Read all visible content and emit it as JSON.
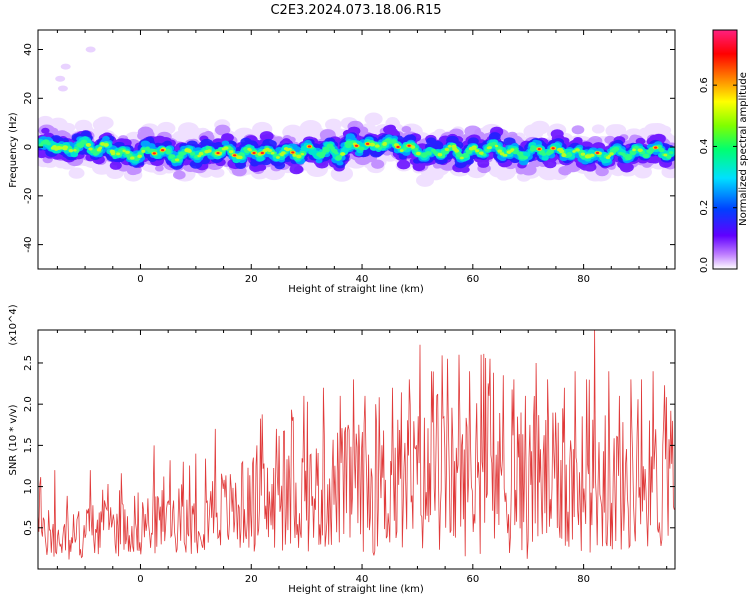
{
  "title": "C2E3.2024.073.18.06.R15",
  "chart_data": [
    {
      "type": "heatmap",
      "xlabel": "Height of straight line (km)",
      "ylabel": "Frequency (Hz)",
      "xlim": [
        -18.5,
        96.5
      ],
      "ylim": [
        -50,
        48
      ],
      "xticks": [
        0,
        20,
        40,
        60,
        80
      ],
      "yticks": [
        -40,
        -20,
        0,
        20,
        40
      ],
      "xtick_labels": [
        "0",
        "20",
        "40",
        "60",
        "80"
      ],
      "ytick_labels": [
        "-40",
        "-20",
        "0",
        "20",
        "40"
      ],
      "center_track": [
        [
          -18,
          0
        ],
        [
          -16,
          2
        ],
        [
          -14,
          -2
        ],
        [
          -12,
          0
        ],
        [
          -10,
          1
        ],
        [
          -8,
          -1
        ],
        [
          -6,
          0
        ],
        [
          -4,
          -2
        ],
        [
          -2,
          -4
        ],
        [
          0,
          -3
        ],
        [
          2,
          -1
        ],
        [
          4,
          -2
        ],
        [
          6,
          -4
        ],
        [
          8,
          -3
        ],
        [
          10,
          -2
        ],
        [
          12,
          -3
        ],
        [
          14,
          -1
        ],
        [
          16,
          -2
        ],
        [
          18,
          -3
        ],
        [
          20,
          -2
        ],
        [
          22,
          -2
        ],
        [
          24,
          -3
        ],
        [
          26,
          -2
        ],
        [
          28,
          -3
        ],
        [
          30,
          -1
        ],
        [
          32,
          -2
        ],
        [
          34,
          -1
        ],
        [
          36,
          -3
        ],
        [
          38,
          1
        ],
        [
          40,
          1
        ],
        [
          42,
          0
        ],
        [
          44,
          2
        ],
        [
          46,
          1
        ],
        [
          48,
          0
        ],
        [
          50,
          -2
        ],
        [
          52,
          -3
        ],
        [
          54,
          -2
        ],
        [
          56,
          -1
        ],
        [
          58,
          -3
        ],
        [
          60,
          -2
        ],
        [
          62,
          -1
        ],
        [
          64,
          0
        ],
        [
          66,
          -2
        ],
        [
          68,
          -3
        ],
        [
          70,
          -2
        ],
        [
          72,
          -1
        ],
        [
          74,
          -2
        ],
        [
          76,
          -1
        ],
        [
          78,
          -3
        ],
        [
          80,
          -2
        ],
        [
          82,
          -4
        ],
        [
          84,
          -3
        ],
        [
          86,
          -2
        ],
        [
          88,
          -3
        ],
        [
          90,
          -2
        ],
        [
          92,
          -1
        ],
        [
          94,
          -2
        ],
        [
          96,
          -2
        ]
      ],
      "outliers": [
        [
          -13.5,
          33
        ],
        [
          -14.5,
          28
        ],
        [
          -9,
          40
        ],
        [
          -14,
          24
        ]
      ],
      "colorbar": {
        "label": "Normalized spectral amplitude",
        "range": [
          0,
          0.78
        ],
        "ticks": [
          0.0,
          0.2,
          0.4,
          0.6
        ],
        "tick_labels": [
          "0.0",
          "0.2",
          "0.4",
          "0.6"
        ],
        "colormap": "rainbow (white-purple-blue-cyan-green-yellow-red-pink)"
      }
    },
    {
      "type": "line",
      "xlabel": "Height of straight line (km)",
      "ylabel": "SNR (10 * v/v)",
      "scale_note": "(x10^4)",
      "xlim": [
        -18.5,
        96.5
      ],
      "ylim": [
        0,
        2.9
      ],
      "xticks": [
        0,
        20,
        40,
        60,
        80
      ],
      "yticks": [
        0.5,
        1.0,
        1.5,
        2.0,
        2.5
      ],
      "xtick_labels": [
        "0",
        "20",
        "40",
        "60",
        "80"
      ],
      "ytick_labels": [
        "0.5",
        "1.0",
        "1.5",
        "2.0",
        "2.5"
      ],
      "series": [
        {
          "color": "#e03a3a",
          "x": [
            -18,
            -16,
            -14,
            -12,
            -10,
            -8,
            -6,
            -4,
            -2,
            0,
            2,
            4,
            6,
            8,
            10,
            12,
            14,
            16,
            18,
            20,
            22,
            24,
            26,
            28,
            30,
            32,
            34,
            36,
            38,
            40,
            42,
            44,
            46,
            48,
            50,
            52,
            54,
            56,
            58,
            60,
            62,
            64,
            66,
            68,
            70,
            72,
            74,
            76,
            78,
            80,
            82,
            84,
            86,
            88,
            90,
            92,
            94,
            96
          ],
          "baseline": [
            0.4,
            0.35,
            0.35,
            0.4,
            0.45,
            0.5,
            0.55,
            0.5,
            0.55,
            0.55,
            0.55,
            0.6,
            0.6,
            0.6,
            0.6,
            0.7,
            0.75,
            0.7,
            0.75,
            0.75,
            0.8,
            0.75,
            0.8,
            0.85,
            0.9,
            0.9,
            0.95,
            1.0,
            1.0,
            1.0,
            0.95,
            1.0,
            1.0,
            1.0,
            1.05,
            1.05,
            1.05,
            1.1,
            1.05,
            1.05,
            1.05,
            1.1,
            1.05,
            1.05,
            1.0,
            1.05,
            1.05,
            1.05,
            1.0,
            1.05,
            1.05,
            1.0,
            1.0,
            1.0,
            1.0,
            1.05,
            1.0,
            1.0
          ],
          "amplitude": [
            0.25,
            0.25,
            0.3,
            0.3,
            0.35,
            0.35,
            0.3,
            0.35,
            0.4,
            0.4,
            0.4,
            0.4,
            0.4,
            0.4,
            0.45,
            0.45,
            0.5,
            0.5,
            0.55,
            0.55,
            0.6,
            0.6,
            0.6,
            0.65,
            0.7,
            0.7,
            0.75,
            0.75,
            0.8,
            0.8,
            0.8,
            0.85,
            0.85,
            0.9,
            0.9,
            0.9,
            0.9,
            0.9,
            0.9,
            0.9,
            0.9,
            0.9,
            0.9,
            0.9,
            0.9,
            0.9,
            0.85,
            0.85,
            0.85,
            0.85,
            0.85,
            0.85,
            0.85,
            0.8,
            0.8,
            0.8,
            0.8,
            0.75
          ],
          "spikes": [
            [
              -15.5,
              1.2
            ],
            [
              -9,
              1.2
            ],
            [
              2.5,
              1.5
            ],
            [
              10,
              1.4
            ],
            [
              13.5,
              1.7
            ],
            [
              18.5,
              1.3
            ],
            [
              21,
              1.5
            ],
            [
              24.5,
              1.7
            ],
            [
              27.5,
              1.8
            ],
            [
              29.5,
              2.1
            ],
            [
              33,
              2.2
            ],
            [
              36,
              2.1
            ],
            [
              38.5,
              2.3
            ],
            [
              40.5,
              2.1
            ],
            [
              42.5,
              2.0
            ],
            [
              45.5,
              2.2
            ],
            [
              48.5,
              2.3
            ],
            [
              50.5,
              2.72
            ],
            [
              52.5,
              2.4
            ],
            [
              53.5,
              2.1
            ],
            [
              55.5,
              2.55
            ],
            [
              57.5,
              2.6
            ],
            [
              59.5,
              2.4
            ],
            [
              61.5,
              2.6
            ],
            [
              63,
              2.1
            ],
            [
              65.5,
              2.35
            ],
            [
              67.5,
              2.3
            ],
            [
              69.5,
              2.1
            ],
            [
              71.5,
              2.5
            ],
            [
              73.5,
              2.3
            ],
            [
              76.5,
              2.2
            ],
            [
              78.5,
              2.4
            ],
            [
              80.5,
              2.3
            ],
            [
              82,
              2.92
            ],
            [
              84.5,
              2.4
            ],
            [
              86.5,
              2.1
            ],
            [
              88.5,
              2.3
            ],
            [
              90.5,
              2.3
            ],
            [
              92.5,
              2.4
            ],
            [
              94.5,
              1.8
            ]
          ]
        }
      ]
    }
  ]
}
